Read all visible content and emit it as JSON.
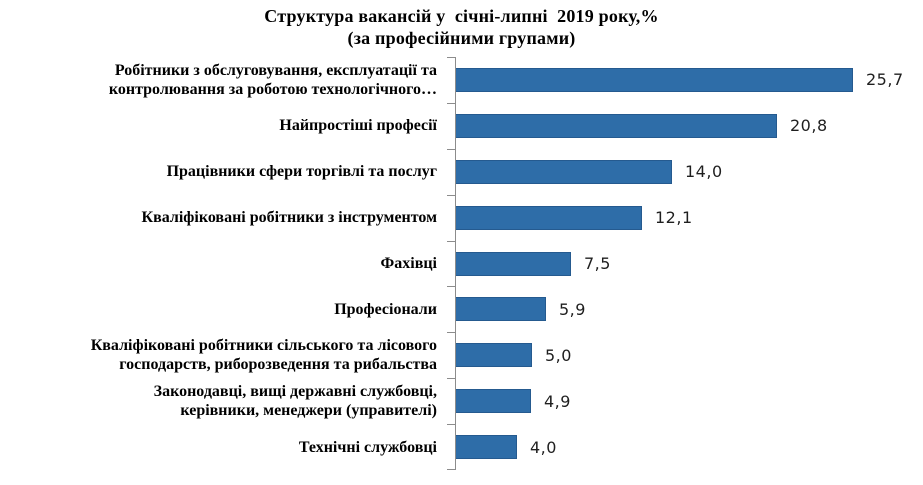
{
  "chart_data": {
    "type": "bar",
    "orientation": "horizontal",
    "title": "Структура вакансій у  січні-липні  2019 року,%",
    "subtitle": "(за професійними групами)",
    "categories": [
      "Робітники з обслуговування, експлуатації та\nконтролювання за роботою технологічного…",
      "Найпростіші професії",
      "Працівники сфери торгівлі та послуг",
      "Кваліфіковані робітники з інструментом",
      "Фахівці",
      "Професіонали",
      "Кваліфіковані робітники сільського та лісового\nгосподарств, риборозведення та рибальства",
      "Законодавці, вищі державні службовці,\nкерівники, менеджери (управителі)",
      "Технічні службовці"
    ],
    "values": [
      25.7,
      20.8,
      14.0,
      12.1,
      7.5,
      5.9,
      5.0,
      4.9,
      4.0
    ],
    "value_labels": [
      "25,7",
      "20,8",
      "14,0",
      "12,1",
      "7,5",
      "5,9",
      "5,0",
      "4,9",
      "4,0"
    ],
    "xlim": [
      0,
      26.6
    ],
    "decimal_separator": ",",
    "grid": "off",
    "legend": "none",
    "bar_color": "#2E6DA8",
    "bar_border_color": "#255A8F",
    "axis_color": "#8C8C8C",
    "text_color": "#000000"
  }
}
